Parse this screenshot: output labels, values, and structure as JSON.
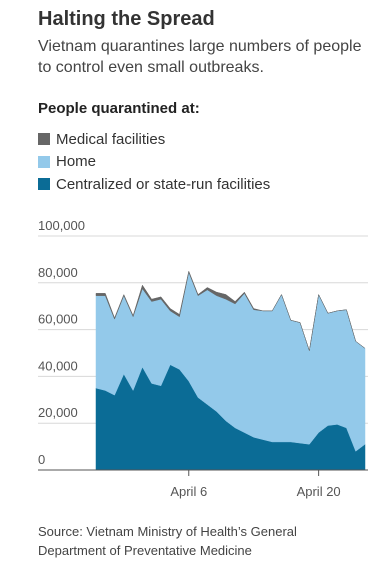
{
  "chart_data": {
    "type": "stacked-area",
    "title": "Halting the Spread",
    "subtitle": "Vietnam quarantines large numbers of people to control even small outbreaks.",
    "legend_title": "People quarantined at:",
    "source": "Source: Vietnam Ministry of Health’s General Department of Preventative Medicine",
    "categories": [
      null,
      null,
      null,
      null,
      null,
      null,
      null,
      null,
      null,
      null,
      "April 6",
      null,
      null,
      null,
      null,
      null,
      null,
      null,
      null,
      null,
      null,
      null,
      null,
      null,
      "April 20",
      null,
      null,
      null,
      null,
      null
    ],
    "series": [
      {
        "name": "Medical facilities",
        "color": "#666666",
        "values": [
          1000,
          1000,
          500,
          500,
          500,
          1500,
          1000,
          1000,
          1000,
          1000,
          500,
          500,
          1000,
          1500,
          2000,
          1000,
          500,
          500,
          0,
          0,
          0,
          0,
          0,
          0,
          0,
          0,
          0,
          0,
          0,
          0
        ]
      },
      {
        "name": "Home",
        "color": "#93c9ea",
        "values": [
          39500,
          40500,
          32500,
          33500,
          31500,
          33500,
          35000,
          37000,
          23000,
          22500,
          46500,
          43500,
          49000,
          49500,
          52000,
          53000,
          59500,
          54500,
          55000,
          56000,
          63000,
          52000,
          51500,
          40000,
          59000,
          48000,
          48500,
          50500,
          47000,
          41000
        ]
      },
      {
        "name": "Centralized or state-run facilities",
        "color": "#0b6c96",
        "values": [
          35000,
          34000,
          32000,
          41000,
          34000,
          44000,
          37000,
          36000,
          45000,
          43000,
          38000,
          31000,
          28000,
          25000,
          21000,
          18000,
          16000,
          14000,
          13000,
          12000,
          12000,
          12000,
          11500,
          11000,
          16000,
          19000,
          19500,
          18000,
          8000,
          11000
        ]
      }
    ],
    "ylim": [
      0,
      100000
    ],
    "yticks": [
      0,
      {
        "value": 20000,
        "label": "20,000"
      },
      {
        "value": 40000,
        "label": "40,000"
      },
      {
        "value": 60000,
        "label": "60,000"
      },
      {
        "value": 80000,
        "label": "80,000"
      },
      {
        "value": 100000,
        "label": "100,000"
      }
    ],
    "grid": true
  }
}
